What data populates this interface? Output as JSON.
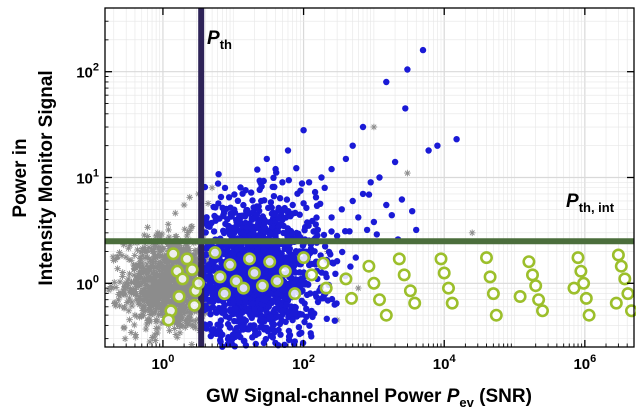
{
  "chart_data": {
    "type": "scatter",
    "xscale": "log",
    "yscale": "log",
    "xlim": [
      0.15,
      5000000
    ],
    "ylim": [
      0.25,
      400
    ],
    "xticks": [
      1,
      100,
      10000,
      1000000
    ],
    "yticks": [
      1,
      10,
      100
    ],
    "xlabel": "GW Signal-channel Power",
    "xlabel_var": "P",
    "xlabel_sub": "ev",
    "xlabel_suffix": "(SNR)",
    "ylabel_line1": "Power in",
    "ylabel_line2": "Intensity Monitor Signal",
    "thresholds": {
      "vertical": {
        "label": "P",
        "sub": "th",
        "x": 3.5,
        "color": "#2e2358"
      },
      "horizontal": {
        "label": "P",
        "sub": "th, int",
        "y": 2.5,
        "color": "#4b6e3c"
      }
    },
    "colors": {
      "gray": "#8c8c8c",
      "blue": "#1a1ad6",
      "green": "#9cbf2b"
    },
    "series": [
      {
        "marker": "star",
        "color": "gray",
        "description": "dense cluster below threshold",
        "clusters": [
          {
            "n": 1200,
            "xc": 1.3,
            "xs": 0.32,
            "yc": 1.0,
            "ys": 0.22
          }
        ],
        "points": [
          [
            1.2,
            3.2
          ],
          [
            1.5,
            4.6
          ],
          [
            2.0,
            5.5
          ],
          [
            2.4,
            6.5
          ],
          [
            3.2,
            7.0
          ],
          [
            0.8,
            2.8
          ],
          [
            5.0,
            8.0
          ],
          [
            60,
            3.0
          ],
          [
            150,
            3.3
          ],
          [
            220,
            2.0
          ],
          [
            300,
            0.45
          ],
          [
            600,
            0.9
          ],
          [
            3000,
            11.0
          ],
          [
            25000,
            3.0
          ],
          [
            1000,
            30
          ],
          [
            40,
            2.6
          ],
          [
            80,
            1.6
          ]
        ]
      },
      {
        "marker": "dot",
        "color": "blue",
        "description": "events above threshold",
        "clusters": [
          {
            "n": 1600,
            "xc": 20,
            "xs": 0.45,
            "yc": 1.25,
            "ys": 0.34
          }
        ],
        "points": [
          [
            5000,
            160
          ],
          [
            3000,
            105
          ],
          [
            1500,
            80
          ],
          [
            2800,
            45
          ],
          [
            700,
            30
          ],
          [
            500,
            20
          ],
          [
            400,
            15
          ],
          [
            250,
            12
          ],
          [
            180,
            10
          ],
          [
            120,
            9
          ],
          [
            100,
            28
          ],
          [
            60,
            18
          ],
          [
            40,
            12
          ],
          [
            30,
            15
          ],
          [
            15000,
            23
          ],
          [
            8000,
            20
          ],
          [
            6000,
            18
          ],
          [
            2000,
            14
          ],
          [
            1200,
            10
          ],
          [
            900,
            9
          ],
          [
            700,
            7
          ],
          [
            500,
            6
          ],
          [
            350,
            5
          ],
          [
            250,
            4.2
          ],
          [
            1500,
            5.5
          ],
          [
            2500,
            6.2
          ],
          [
            3500,
            4.8
          ],
          [
            1000,
            3.8
          ],
          [
            800,
            3.2
          ],
          [
            200,
            8
          ],
          [
            150,
            6.5
          ],
          [
            90,
            7.5
          ],
          [
            70,
            5.5
          ],
          [
            50,
            9
          ],
          [
            25,
            6
          ],
          [
            18,
            7.2
          ],
          [
            600,
            4.2
          ],
          [
            450,
            3.1
          ],
          [
            300,
            2.8
          ],
          [
            4000,
            3.2
          ],
          [
            2200,
            2.6
          ],
          [
            1800,
            4.4
          ],
          [
            1100,
            2.9
          ]
        ]
      },
      {
        "marker": "circle",
        "color": "green",
        "description": "injected signals",
        "points": [
          [
            1.4,
            1.9
          ],
          [
            1.6,
            1.3
          ],
          [
            1.9,
            1.1
          ],
          [
            1.7,
            0.75
          ],
          [
            1.3,
            0.55
          ],
          [
            1.2,
            0.45
          ],
          [
            2.2,
            1.7
          ],
          [
            2.6,
            1.35
          ],
          [
            2.9,
            0.85
          ],
          [
            3.2,
            1.0
          ],
          [
            2.8,
            0.62
          ],
          [
            5.5,
            1.95
          ],
          [
            6.5,
            1.15
          ],
          [
            7.5,
            0.8
          ],
          [
            9,
            1.5
          ],
          [
            11,
            1.05
          ],
          [
            14,
            0.9
          ],
          [
            17,
            1.7
          ],
          [
            20,
            1.25
          ],
          [
            26,
            0.95
          ],
          [
            33,
            1.6
          ],
          [
            42,
            1.05
          ],
          [
            55,
            1.3
          ],
          [
            75,
            0.8
          ],
          [
            100,
            1.75
          ],
          [
            130,
            1.2
          ],
          [
            190,
            1.55
          ],
          [
            210,
            0.9
          ],
          [
            400,
            1.1
          ],
          [
            480,
            0.72
          ],
          [
            850,
            1.45
          ],
          [
            1000,
            1.0
          ],
          [
            1200,
            0.7
          ],
          [
            1500,
            0.5
          ],
          [
            2300,
            1.7
          ],
          [
            2700,
            1.2
          ],
          [
            3300,
            0.85
          ],
          [
            3800,
            0.65
          ],
          [
            9000,
            1.7
          ],
          [
            10000,
            1.25
          ],
          [
            11500,
            0.9
          ],
          [
            13000,
            0.65
          ],
          [
            40000,
            1.75
          ],
          [
            45000,
            1.15
          ],
          [
            50000,
            0.8
          ],
          [
            55000,
            0.5
          ],
          [
            160000,
            1.6
          ],
          [
            180000,
            1.2
          ],
          [
            200000,
            0.95
          ],
          [
            220000,
            0.7
          ],
          [
            800000,
            1.75
          ],
          [
            880000,
            1.3
          ],
          [
            960000,
            1.0
          ],
          [
            1050000,
            0.72
          ],
          [
            1150000,
            0.5
          ],
          [
            3000000,
            1.85
          ],
          [
            3300000,
            1.45
          ],
          [
            3700000,
            1.1
          ],
          [
            4100000,
            0.8
          ],
          [
            4600000,
            0.55
          ],
          [
            120000,
            0.75
          ],
          [
            250000,
            0.55
          ],
          [
            700000,
            0.9
          ],
          [
            2800000,
            0.65
          ]
        ]
      }
    ]
  }
}
